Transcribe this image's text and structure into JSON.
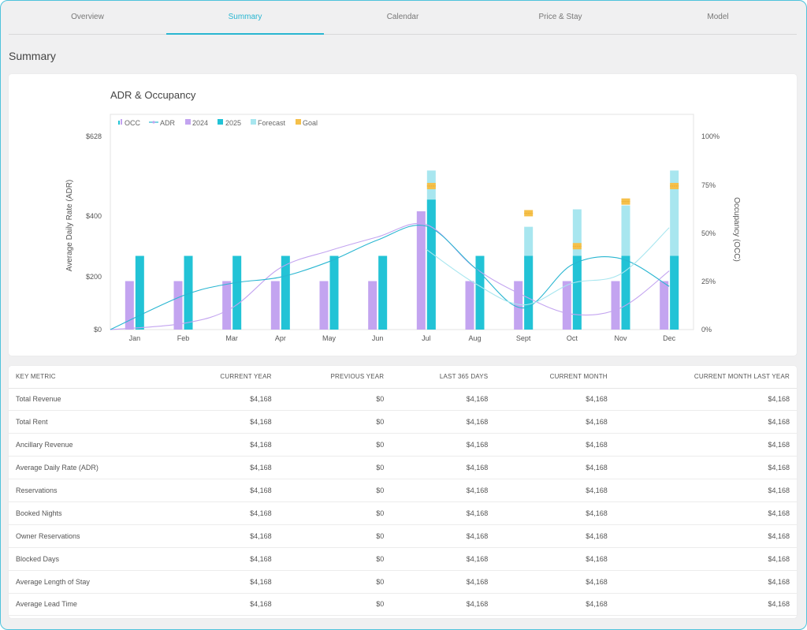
{
  "tabs": [
    {
      "label": "Overview"
    },
    {
      "label": "Summary"
    },
    {
      "label": "Calendar"
    },
    {
      "label": "Price & Stay"
    },
    {
      "label": "Model"
    }
  ],
  "active_tab": 1,
  "page_title": "Summary",
  "colors": {
    "accent": "#29b6d1",
    "bar_2024": "#c3a4f0",
    "bar_2025": "#22c3d6",
    "forecast": "#a8e6ef",
    "goal": "#f5c04a",
    "adr_2024_line": "#c3a4f0",
    "adr_2025_line": "#29b6d1",
    "adr_forecast_line": "#a8e6ef"
  },
  "chart_data": {
    "type": "bar",
    "title": "ADR & Occupancy",
    "legend": [
      {
        "label": "OCC",
        "icon": "bar-icon",
        "color": "#29b6d1"
      },
      {
        "label": "ADR",
        "icon": "line-icon",
        "color": "#29b6d1"
      },
      {
        "label": "2024",
        "icon": "square-icon",
        "color": "#c3a4f0"
      },
      {
        "label": "2025",
        "icon": "square-icon",
        "color": "#22c3d6"
      },
      {
        "label": "Forecast",
        "icon": "square-icon",
        "color": "#a8e6ef"
      },
      {
        "label": "Goal",
        "icon": "square-icon",
        "color": "#f5c04a"
      }
    ],
    "categories": [
      "Jan",
      "Feb",
      "Mar",
      "Apr",
      "May",
      "Jun",
      "Jul",
      "Aug",
      "Sept",
      "Oct",
      "Nov",
      "Dec"
    ],
    "y_left": {
      "label": "Average Daily Rate (ADR)",
      "ticks": [
        "$0",
        "$200",
        "$400",
        "$628"
      ]
    },
    "y_right": {
      "label": "Occupancy (OCC)",
      "ticks": [
        "0%",
        "25%",
        "50%",
        "75%",
        "100%"
      ],
      "range": [
        0,
        100
      ]
    },
    "occupancy_2024": [
      25,
      25,
      25,
      25,
      25,
      25,
      61,
      25,
      25,
      25,
      25,
      25
    ],
    "occupancy_2025": [
      38,
      38,
      38,
      38,
      38,
      38,
      67,
      38,
      38,
      38,
      38,
      38
    ],
    "occupancy_forecast": [
      null,
      null,
      null,
      null,
      null,
      null,
      82,
      null,
      53,
      62,
      64,
      82
    ],
    "occupancy_goal": [
      null,
      null,
      null,
      null,
      null,
      null,
      74,
      null,
      60,
      43,
      66,
      74
    ],
    "adr_2024": [
      0,
      20,
      70,
      200,
      255,
      300,
      340,
      200,
      110,
      50,
      70,
      190
    ],
    "adr_2025": [
      0,
      110,
      150,
      170,
      220,
      290,
      335,
      200,
      70,
      210,
      230,
      140
    ],
    "adr_forecast": [
      null,
      null,
      null,
      null,
      null,
      null,
      260,
      150,
      80,
      150,
      180,
      330
    ]
  },
  "table": {
    "headers": [
      "KEY METRIC",
      "CURRENT YEAR",
      "PREVIOUS YEAR",
      "LAST 365 DAYS",
      "CURRENT MONTH",
      "CURRENT MONTH LAST YEAR"
    ],
    "rows": [
      [
        "Total Revenue",
        "$4,168",
        "$0",
        "$4,168",
        "$4,168",
        "$4,168"
      ],
      [
        "Total Rent",
        "$4,168",
        "$0",
        "$4,168",
        "$4,168",
        "$4,168"
      ],
      [
        "Ancillary Revenue",
        "$4,168",
        "$0",
        "$4,168",
        "$4,168",
        "$4,168"
      ],
      [
        "Average Daily Rate (ADR)",
        "$4,168",
        "$0",
        "$4,168",
        "$4,168",
        "$4,168"
      ],
      [
        "Reservations",
        "$4,168",
        "$0",
        "$4,168",
        "$4,168",
        "$4,168"
      ],
      [
        "Booked Nights",
        "$4,168",
        "$0",
        "$4,168",
        "$4,168",
        "$4,168"
      ],
      [
        "Owner Reservations",
        "$4,168",
        "$0",
        "$4,168",
        "$4,168",
        "$4,168"
      ],
      [
        "Blocked Days",
        "$4,168",
        "$0",
        "$4,168",
        "$4,168",
        "$4,168"
      ],
      [
        "Average Length of Stay",
        "$4,168",
        "$0",
        "$4,168",
        "$4,168",
        "$4,168"
      ],
      [
        "Average Lead Time",
        "$4,168",
        "$0",
        "$4,168",
        "$4,168",
        "$4,168"
      ]
    ]
  }
}
